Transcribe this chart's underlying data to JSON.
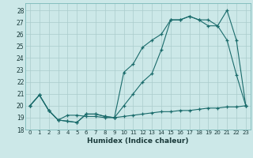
{
  "xlabel": "Humidex (Indice chaleur)",
  "bg_color": "#cce8e8",
  "grid_color": "#aacccc",
  "line_color": "#1a6b6b",
  "xlim": [
    -0.5,
    23.5
  ],
  "ylim": [
    18,
    28.6
  ],
  "xticks": [
    0,
    1,
    2,
    3,
    4,
    5,
    6,
    7,
    8,
    9,
    10,
    11,
    12,
    13,
    14,
    15,
    16,
    17,
    18,
    19,
    20,
    21,
    22,
    23
  ],
  "yticks": [
    18,
    19,
    20,
    21,
    22,
    23,
    24,
    25,
    26,
    27,
    28
  ],
  "line1_x": [
    0,
    1,
    2,
    3,
    4,
    5,
    6,
    7,
    8,
    9,
    10,
    11,
    12,
    13,
    14,
    15,
    16,
    17,
    18,
    19,
    20,
    21,
    22,
    23
  ],
  "line1_y": [
    20.0,
    20.9,
    19.6,
    18.8,
    19.2,
    19.2,
    19.1,
    19.1,
    19.0,
    19.0,
    19.1,
    19.2,
    19.3,
    19.4,
    19.5,
    19.5,
    19.6,
    19.6,
    19.7,
    19.8,
    19.8,
    19.9,
    19.9,
    20.0
  ],
  "line2_x": [
    0,
    1,
    2,
    3,
    4,
    5,
    6,
    7,
    8,
    9,
    10,
    11,
    12,
    13,
    14,
    15,
    16,
    17,
    18,
    19,
    20,
    21,
    22,
    23
  ],
  "line2_y": [
    20.0,
    20.9,
    19.6,
    18.8,
    18.7,
    18.6,
    19.3,
    19.3,
    19.1,
    19.0,
    20.0,
    21.0,
    22.0,
    22.7,
    24.7,
    27.2,
    27.2,
    27.5,
    27.2,
    26.7,
    26.7,
    28.0,
    25.5,
    20.0
  ],
  "line3_x": [
    0,
    1,
    2,
    3,
    4,
    5,
    6,
    7,
    8,
    9,
    10,
    11,
    12,
    13,
    14,
    15,
    16,
    17,
    18,
    19,
    20,
    21,
    22,
    23
  ],
  "line3_y": [
    20.0,
    20.9,
    19.6,
    18.8,
    18.7,
    18.6,
    19.3,
    19.3,
    19.1,
    19.0,
    22.8,
    23.5,
    24.9,
    25.5,
    26.0,
    27.2,
    27.2,
    27.5,
    27.2,
    27.2,
    26.7,
    25.5,
    22.6,
    20.0
  ]
}
